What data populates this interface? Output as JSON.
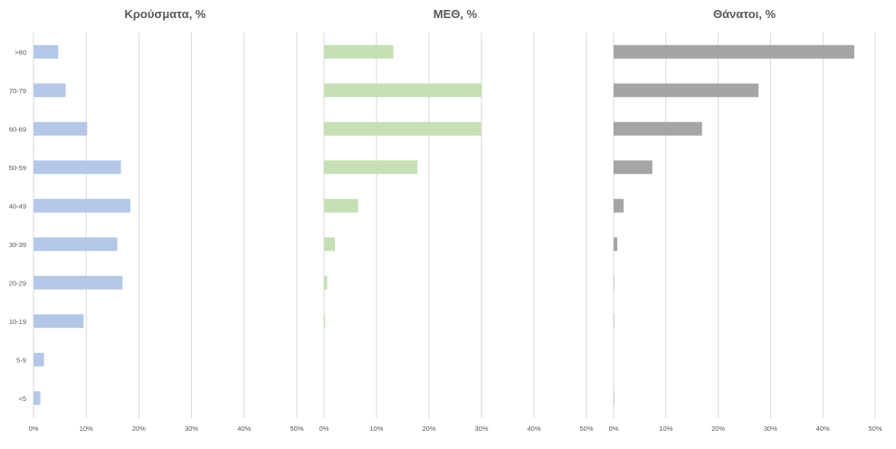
{
  "chart_data": [
    {
      "type": "bar",
      "orientation": "horizontal",
      "title": "Κρούσματα, %",
      "categories": [
        ">80",
        "70-79",
        "60-69",
        "50-59",
        "40-49",
        "30-39",
        "20-29",
        "10-19",
        "5-9",
        "<5"
      ],
      "values": [
        4.7,
        6.1,
        10.2,
        16.6,
        18.4,
        15.9,
        16.9,
        9.5,
        2.0,
        1.3
      ],
      "xlim": [
        0,
        50
      ],
      "xticks": [
        "0%",
        "10%",
        "20%",
        "30%",
        "40%",
        "50%"
      ],
      "color": "#b4c7e7",
      "grid": true
    },
    {
      "type": "bar",
      "orientation": "horizontal",
      "title": "ΜΕΘ, %",
      "categories": [
        ">80",
        "70-79",
        "60-69",
        "50-59",
        "40-49",
        "30-39",
        "20-29",
        "10-19",
        "5-9",
        "<5"
      ],
      "values": [
        13.2,
        30.1,
        29.9,
        17.8,
        6.5,
        2.1,
        0.6,
        0.2,
        0,
        0
      ],
      "xlim": [
        0,
        50
      ],
      "xticks": [
        "0%",
        "10%",
        "20%",
        "30%",
        "40%",
        "50%"
      ],
      "color": "#c5e0b4",
      "grid": true
    },
    {
      "type": "bar",
      "orientation": "horizontal",
      "title": "Θάνατοι, %",
      "categories": [
        ">80",
        "70-79",
        "60-69",
        "50-59",
        "40-49",
        "30-39",
        "20-29",
        "10-19",
        "5-9",
        "<5"
      ],
      "values": [
        46.0,
        27.7,
        16.9,
        7.4,
        1.9,
        0.7,
        0.1,
        0.1,
        0,
        0.1
      ],
      "xlim": [
        0,
        50
      ],
      "xticks": [
        "0%",
        "10%",
        "20%",
        "30%",
        "40%",
        "50%"
      ],
      "color": "#a5a5a5",
      "grid": true
    }
  ]
}
